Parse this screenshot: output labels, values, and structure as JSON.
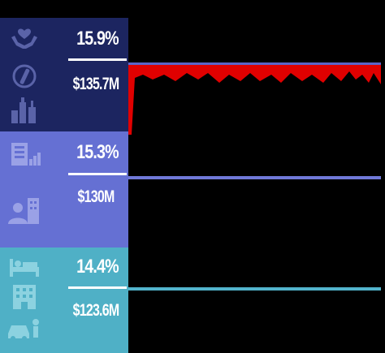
{
  "colors": {
    "background": "#000000",
    "panel_1": "#1c2560",
    "panel_2": "#6570d3",
    "panel_3": "#4fb0c6",
    "line_1": "#5a64c8",
    "line_2": "#7079d8",
    "line_3": "#52b4cc",
    "artifact": "#e00000",
    "icon_1": "#5a63a8",
    "icon_2": "#9aa1e6",
    "icon_3": "#8cd2e0"
  },
  "rows": [
    {
      "percent": "15.9%",
      "amount": "$135.7M",
      "icons": [
        "hands-holding-heart-icon",
        "medication-icon",
        "bottles-icon"
      ]
    },
    {
      "percent": "15.3%",
      "amount": "$130M",
      "icons": [
        "clipboard-chart-icon",
        "person-building-icon"
      ]
    },
    {
      "percent": "14.4%",
      "amount": "$123.6M",
      "icons": [
        "bed-icon",
        "hotel-icon",
        "car-person-icon"
      ]
    }
  ]
}
